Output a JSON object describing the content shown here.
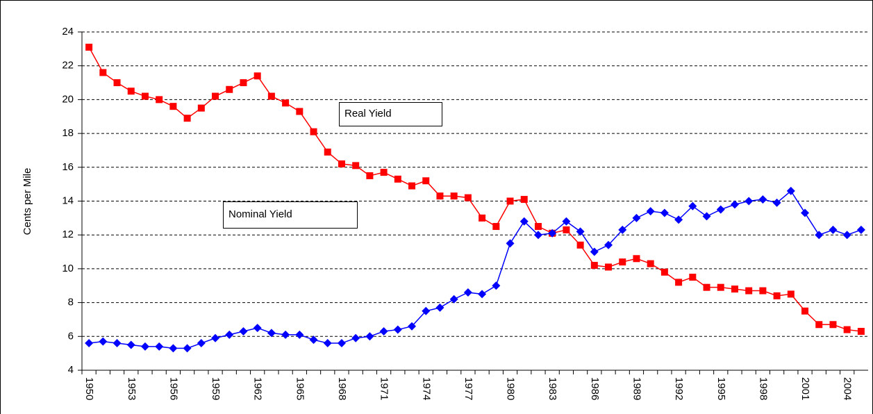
{
  "chart_data": {
    "type": "line",
    "y_label": "Cents per Mile",
    "categories": [
      "1950",
      null,
      null,
      "1953",
      null,
      null,
      "1956",
      null,
      null,
      "1959",
      null,
      null,
      "1962",
      null,
      null,
      "1965",
      null,
      null,
      "1968",
      null,
      null,
      "1971",
      null,
      null,
      "1974",
      null,
      null,
      "1977",
      null,
      null,
      "1980",
      null,
      null,
      "1983",
      null,
      null,
      "1986",
      null,
      null,
      "1989",
      null,
      null,
      "1992",
      null,
      null,
      "1995",
      null,
      null,
      "1998",
      null,
      null,
      "2001",
      null,
      null,
      "2004",
      null
    ],
    "series": [
      {
        "name": "Real Yield",
        "color": "#ff0000",
        "marker": "square",
        "values": [
          23.1,
          21.6,
          21.0,
          20.5,
          20.2,
          20.0,
          19.6,
          18.9,
          19.5,
          20.2,
          20.6,
          21.0,
          21.4,
          20.2,
          19.8,
          19.3,
          18.1,
          16.9,
          16.2,
          16.1,
          15.5,
          15.7,
          15.3,
          14.9,
          15.2,
          14.3,
          14.3,
          14.2,
          13.0,
          12.5,
          14.0,
          14.1,
          12.5,
          12.1,
          12.3,
          11.4,
          10.2,
          10.1,
          10.4,
          10.6,
          10.3,
          9.8,
          9.2,
          9.5,
          8.9,
          8.9,
          8.8,
          8.7,
          8.7,
          8.4,
          8.5,
          7.5,
          6.7,
          6.7,
          6.4,
          6.3
        ]
      },
      {
        "name": "Nominal Yield",
        "color": "#0000ff",
        "marker": "diamond",
        "values": [
          5.6,
          5.7,
          5.6,
          5.5,
          5.4,
          5.4,
          5.3,
          5.3,
          5.6,
          5.9,
          6.1,
          6.3,
          6.5,
          6.2,
          6.1,
          6.1,
          5.8,
          5.6,
          5.6,
          5.9,
          6.0,
          6.3,
          6.4,
          6.6,
          7.5,
          7.7,
          8.2,
          8.6,
          8.5,
          9.0,
          11.5,
          12.8,
          12.0,
          12.1,
          12.8,
          12.2,
          11.0,
          11.4,
          12.3,
          13.0,
          13.4,
          13.3,
          12.9,
          13.7,
          13.1,
          13.5,
          13.8,
          14.0,
          14.1,
          13.9,
          14.6,
          13.3,
          12.0,
          12.3,
          12.0,
          12.3
        ]
      }
    ],
    "ylim": [
      4,
      24
    ],
    "yticks": [
      4,
      6,
      8,
      10,
      12,
      14,
      16,
      18,
      20,
      22,
      24
    ],
    "grid": true
  }
}
